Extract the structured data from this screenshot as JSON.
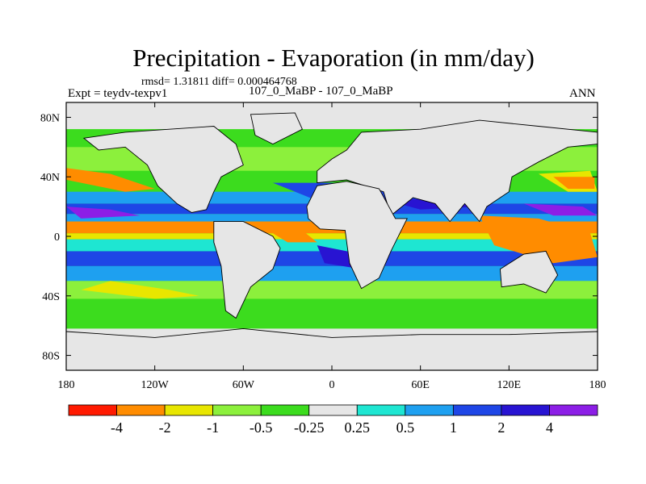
{
  "chart_data": {
    "type": "heatmap",
    "title": "Precipitation - Evaporation (in mm/day)",
    "stats_text": "rmsd= 1.31811 diff= 0.000464768",
    "experiment_label": "Expt = teydv-texpv1",
    "case_label": "107_0_MaBP - 107_0_MaBP",
    "season": "ANN",
    "xlim": [
      -180,
      180
    ],
    "ylim": [
      -90,
      90
    ],
    "x_ticks": [
      {
        "value": -180,
        "label": "180"
      },
      {
        "value": -120,
        "label": "120W"
      },
      {
        "value": -60,
        "label": "60W"
      },
      {
        "value": 0,
        "label": "0"
      },
      {
        "value": 60,
        "label": "60E"
      },
      {
        "value": 120,
        "label": "120E"
      },
      {
        "value": 180,
        "label": "180"
      }
    ],
    "y_ticks": [
      {
        "value": 80,
        "label": "80N"
      },
      {
        "value": 40,
        "label": "40N"
      },
      {
        "value": 0,
        "label": "0"
      },
      {
        "value": -40,
        "label": "40S"
      },
      {
        "value": -80,
        "label": "80S"
      }
    ],
    "colorbar": {
      "colors": [
        "#ff1a00",
        "#ff8c00",
        "#e8e600",
        "#8cf03c",
        "#3cdc1e",
        "#e6e6e6",
        "#1ee6d2",
        "#1ea0f0",
        "#1e46e6",
        "#2814d2",
        "#8c1ee6"
      ],
      "labels": [
        "-4",
        "-2",
        "-1",
        "-0.5",
        "-0.25",
        "0.25",
        "0.5",
        "1",
        "2",
        "4"
      ]
    },
    "colors": {
      "land": "#e6e6e6",
      "ocean_base": "#3cdc1e",
      "coast": "#000000"
    },
    "lat_bands": [
      {
        "lat_from": 90,
        "lat_to": 72,
        "color": "#e6e6e6"
      },
      {
        "lat_from": 72,
        "lat_to": 60,
        "color": "#3cdc1e"
      },
      {
        "lat_from": 60,
        "lat_to": 44,
        "color": "#8cf03c"
      },
      {
        "lat_from": 44,
        "lat_to": 30,
        "color": "#3cdc1e"
      },
      {
        "lat_from": 30,
        "lat_to": 22,
        "color": "#1ea0f0"
      },
      {
        "lat_from": 22,
        "lat_to": 15,
        "color": "#1e46e6"
      },
      {
        "lat_from": 15,
        "lat_to": 10,
        "color": "#1ea0f0"
      },
      {
        "lat_from": 10,
        "lat_to": 2,
        "color": "#ff8c00"
      },
      {
        "lat_from": 2,
        "lat_to": -2,
        "color": "#e8e600"
      },
      {
        "lat_from": -2,
        "lat_to": -10,
        "color": "#1ee6d2"
      },
      {
        "lat_from": -10,
        "lat_to": -20,
        "color": "#1e46e6"
      },
      {
        "lat_from": -20,
        "lat_to": -30,
        "color": "#1ea0f0"
      },
      {
        "lat_from": -30,
        "lat_to": -42,
        "color": "#8cf03c"
      },
      {
        "lat_from": -42,
        "lat_to": -62,
        "color": "#3cdc1e"
      },
      {
        "lat_from": -62,
        "lat_to": -90,
        "color": "#e6e6e6"
      }
    ],
    "field_patches": [
      {
        "color": "#ff8c00",
        "points": [
          [
            -180,
            46
          ],
          [
            -150,
            42
          ],
          [
            -120,
            32
          ],
          [
            -140,
            30
          ],
          [
            -180,
            38
          ]
        ]
      },
      {
        "color": "#e8e600",
        "points": [
          [
            -150,
            -30
          ],
          [
            -110,
            -36
          ],
          [
            -90,
            -40
          ],
          [
            -120,
            -42
          ],
          [
            -170,
            -36
          ]
        ]
      },
      {
        "color": "#ff1a00",
        "points": [
          [
            110,
            12
          ],
          [
            130,
            6
          ],
          [
            160,
            0
          ],
          [
            170,
            -8
          ],
          [
            140,
            -6
          ],
          [
            115,
            2
          ]
        ]
      },
      {
        "color": "#ff8c00",
        "points": [
          [
            100,
            14
          ],
          [
            140,
            12
          ],
          [
            175,
            2
          ],
          [
            180,
            -14
          ],
          [
            150,
            -18
          ],
          [
            110,
            -6
          ]
        ]
      },
      {
        "color": "#e8e600",
        "points": [
          [
            140,
            42
          ],
          [
            175,
            44
          ],
          [
            180,
            30
          ],
          [
            160,
            30
          ]
        ]
      },
      {
        "color": "#ff8c00",
        "points": [
          [
            150,
            40
          ],
          [
            178,
            40
          ],
          [
            178,
            32
          ],
          [
            160,
            32
          ]
        ]
      },
      {
        "color": "#1e46e6",
        "points": [
          [
            -40,
            36
          ],
          [
            10,
            36
          ],
          [
            60,
            30
          ],
          [
            110,
            26
          ],
          [
            100,
            18
          ],
          [
            40,
            22
          ],
          [
            -10,
            24
          ]
        ]
      },
      {
        "color": "#2814d2",
        "points": [
          [
            30,
            26
          ],
          [
            80,
            24
          ],
          [
            100,
            20
          ],
          [
            60,
            18
          ]
        ]
      },
      {
        "color": "#8c1ee6",
        "points": [
          [
            -180,
            20
          ],
          [
            -150,
            18
          ],
          [
            -130,
            14
          ],
          [
            -170,
            12
          ]
        ]
      },
      {
        "color": "#8c1ee6",
        "points": [
          [
            130,
            22
          ],
          [
            170,
            20
          ],
          [
            180,
            14
          ],
          [
            150,
            14
          ]
        ]
      },
      {
        "color": "#ff8c00",
        "points": [
          [
            -40,
            2
          ],
          [
            -20,
            4
          ],
          [
            -10,
            -4
          ],
          [
            -30,
            -4
          ]
        ]
      },
      {
        "color": "#2814d2",
        "points": [
          [
            -10,
            -6
          ],
          [
            10,
            -10
          ],
          [
            20,
            -22
          ],
          [
            -5,
            -18
          ]
        ]
      }
    ],
    "land_polygons": [
      {
        "name": "north-america",
        "points": [
          [
            -168,
            66
          ],
          [
            -140,
            70
          ],
          [
            -110,
            72
          ],
          [
            -80,
            74
          ],
          [
            -65,
            62
          ],
          [
            -60,
            48
          ],
          [
            -75,
            40
          ],
          [
            -80,
            30
          ],
          [
            -85,
            18
          ],
          [
            -95,
            16
          ],
          [
            -105,
            22
          ],
          [
            -118,
            34
          ],
          [
            -125,
            48
          ],
          [
            -140,
            60
          ],
          [
            -158,
            58
          ]
        ]
      },
      {
        "name": "south-america",
        "points": [
          [
            -80,
            10
          ],
          [
            -60,
            10
          ],
          [
            -40,
            0
          ],
          [
            -35,
            -8
          ],
          [
            -40,
            -22
          ],
          [
            -55,
            -34
          ],
          [
            -65,
            -55
          ],
          [
            -72,
            -50
          ],
          [
            -75,
            -20
          ],
          [
            -80,
            -4
          ]
        ]
      },
      {
        "name": "greenland",
        "points": [
          [
            -55,
            82
          ],
          [
            -25,
            83
          ],
          [
            -20,
            72
          ],
          [
            -40,
            62
          ],
          [
            -52,
            68
          ]
        ]
      },
      {
        "name": "eurasia",
        "points": [
          [
            -10,
            36
          ],
          [
            -10,
            44
          ],
          [
            0,
            52
          ],
          [
            10,
            58
          ],
          [
            20,
            70
          ],
          [
            60,
            72
          ],
          [
            100,
            78
          ],
          [
            140,
            74
          ],
          [
            180,
            70
          ],
          [
            180,
            62
          ],
          [
            160,
            60
          ],
          [
            140,
            50
          ],
          [
            122,
            40
          ],
          [
            120,
            30
          ],
          [
            105,
            20
          ],
          [
            100,
            10
          ],
          [
            90,
            22
          ],
          [
            80,
            10
          ],
          [
            70,
            22
          ],
          [
            55,
            26
          ],
          [
            40,
            14
          ],
          [
            35,
            30
          ],
          [
            10,
            38
          ]
        ]
      },
      {
        "name": "africa",
        "points": [
          [
            -17,
            20
          ],
          [
            -10,
            34
          ],
          [
            10,
            37
          ],
          [
            32,
            32
          ],
          [
            43,
            12
          ],
          [
            51,
            12
          ],
          [
            40,
            -10
          ],
          [
            32,
            -28
          ],
          [
            20,
            -35
          ],
          [
            12,
            -18
          ],
          [
            9,
            4
          ],
          [
            -8,
            5
          ],
          [
            -16,
            12
          ]
        ]
      },
      {
        "name": "australia",
        "points": [
          [
            114,
            -22
          ],
          [
            130,
            -12
          ],
          [
            145,
            -10
          ],
          [
            153,
            -26
          ],
          [
            145,
            -38
          ],
          [
            130,
            -32
          ],
          [
            115,
            -34
          ]
        ]
      },
      {
        "name": "antarctica",
        "points": [
          [
            -180,
            -64
          ],
          [
            -120,
            -68
          ],
          [
            -60,
            -62
          ],
          [
            0,
            -68
          ],
          [
            60,
            -66
          ],
          [
            120,
            -66
          ],
          [
            180,
            -64
          ],
          [
            180,
            -90
          ],
          [
            -180,
            -90
          ]
        ]
      }
    ]
  }
}
